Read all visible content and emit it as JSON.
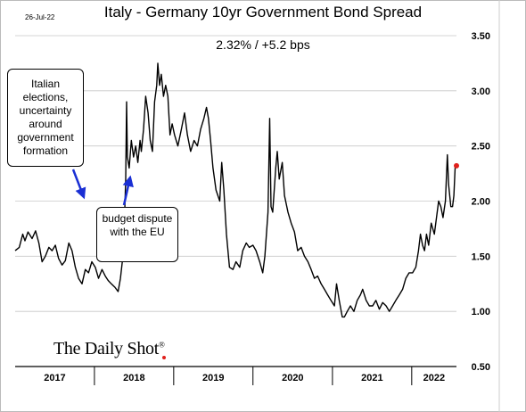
{
  "header": {
    "date": "26-Jul-22",
    "title": "Italy - Germany 10yr Government Bond Spread",
    "subtitle": "2.32%  /  +5.2 bps"
  },
  "annotations": {
    "elections": "Italian elections, uncertainty around government formation",
    "budget": "budget dispute with the EU"
  },
  "branding": {
    "logo": "The Daily Shot",
    "reg": "®",
    "logo_dot_color": "#e0201c"
  },
  "colors": {
    "line": "#000000",
    "last_point": "#e0201c",
    "arrow": "#1a2fd4",
    "grid": "#c8c8c8"
  },
  "chart_data": {
    "type": "line",
    "title": "Italy - Germany 10yr Government Bond Spread",
    "subtitle": "2.32%  /  +5.2 bps",
    "unit": "%",
    "y_axis_position": "right",
    "ylim": [
      0.5,
      3.5
    ],
    "yticks": [
      0.5,
      1.0,
      1.5,
      2.0,
      2.5,
      3.0,
      3.5
    ],
    "ytick_labels": [
      "0.50",
      "1.00",
      "1.50",
      "2.00",
      "2.50",
      "3.00",
      "3.50"
    ],
    "x_range": [
      "2017-01-01",
      "2022-07-26"
    ],
    "year_labels": [
      "2017",
      "2018",
      "2019",
      "2020",
      "2021",
      "2022"
    ],
    "grid": "horizontal",
    "series": [
      {
        "points": [
          [
            "2017-01-01",
            1.55
          ],
          [
            "2017-01-20",
            1.58
          ],
          [
            "2017-02-05",
            1.7
          ],
          [
            "2017-02-15",
            1.64
          ],
          [
            "2017-03-01",
            1.72
          ],
          [
            "2017-03-20",
            1.66
          ],
          [
            "2017-04-05",
            1.73
          ],
          [
            "2017-04-20",
            1.62
          ],
          [
            "2017-05-05",
            1.45
          ],
          [
            "2017-05-20",
            1.5
          ],
          [
            "2017-06-05",
            1.58
          ],
          [
            "2017-06-20",
            1.55
          ],
          [
            "2017-07-05",
            1.6
          ],
          [
            "2017-07-20",
            1.48
          ],
          [
            "2017-08-05",
            1.42
          ],
          [
            "2017-08-20",
            1.46
          ],
          [
            "2017-09-05",
            1.62
          ],
          [
            "2017-09-20",
            1.55
          ],
          [
            "2017-10-05",
            1.4
          ],
          [
            "2017-10-20",
            1.3
          ],
          [
            "2017-11-05",
            1.25
          ],
          [
            "2017-11-20",
            1.38
          ],
          [
            "2017-12-05",
            1.35
          ],
          [
            "2017-12-20",
            1.45
          ],
          [
            "2018-01-05",
            1.4
          ],
          [
            "2018-01-20",
            1.3
          ],
          [
            "2018-02-05",
            1.38
          ],
          [
            "2018-02-20",
            1.32
          ],
          [
            "2018-03-05",
            1.28
          ],
          [
            "2018-03-20",
            1.25
          ],
          [
            "2018-04-05",
            1.22
          ],
          [
            "2018-04-20",
            1.18
          ],
          [
            "2018-05-01",
            1.3
          ],
          [
            "2018-05-15",
            1.55
          ],
          [
            "2018-05-25",
            2.2
          ],
          [
            "2018-05-29",
            2.9
          ],
          [
            "2018-06-02",
            2.4
          ],
          [
            "2018-06-10",
            2.3
          ],
          [
            "2018-06-20",
            2.55
          ],
          [
            "2018-06-30",
            2.4
          ],
          [
            "2018-07-10",
            2.5
          ],
          [
            "2018-07-20",
            2.35
          ],
          [
            "2018-07-30",
            2.55
          ],
          [
            "2018-08-05",
            2.45
          ],
          [
            "2018-08-15",
            2.65
          ],
          [
            "2018-08-25",
            2.95
          ],
          [
            "2018-09-05",
            2.8
          ],
          [
            "2018-09-15",
            2.55
          ],
          [
            "2018-09-25",
            2.45
          ],
          [
            "2018-10-05",
            2.9
          ],
          [
            "2018-10-15",
            3.05
          ],
          [
            "2018-10-20",
            3.25
          ],
          [
            "2018-10-28",
            3.05
          ],
          [
            "2018-11-05",
            3.15
          ],
          [
            "2018-11-15",
            2.95
          ],
          [
            "2018-11-25",
            3.05
          ],
          [
            "2018-12-05",
            2.95
          ],
          [
            "2018-12-15",
            2.6
          ],
          [
            "2018-12-25",
            2.7
          ],
          [
            "2019-01-05",
            2.6
          ],
          [
            "2019-01-20",
            2.5
          ],
          [
            "2019-02-05",
            2.65
          ],
          [
            "2019-02-20",
            2.8
          ],
          [
            "2019-03-05",
            2.6
          ],
          [
            "2019-03-20",
            2.45
          ],
          [
            "2019-04-05",
            2.55
          ],
          [
            "2019-04-20",
            2.5
          ],
          [
            "2019-05-05",
            2.65
          ],
          [
            "2019-05-20",
            2.75
          ],
          [
            "2019-06-01",
            2.85
          ],
          [
            "2019-06-10",
            2.75
          ],
          [
            "2019-06-20",
            2.55
          ],
          [
            "2019-07-01",
            2.3
          ],
          [
            "2019-07-15",
            2.1
          ],
          [
            "2019-08-01",
            2.0
          ],
          [
            "2019-08-10",
            2.35
          ],
          [
            "2019-08-20",
            2.1
          ],
          [
            "2019-09-01",
            1.7
          ],
          [
            "2019-09-15",
            1.4
          ],
          [
            "2019-10-01",
            1.38
          ],
          [
            "2019-10-15",
            1.45
          ],
          [
            "2019-11-01",
            1.4
          ],
          [
            "2019-11-15",
            1.55
          ],
          [
            "2019-12-01",
            1.62
          ],
          [
            "2019-12-15",
            1.58
          ],
          [
            "2020-01-01",
            1.6
          ],
          [
            "2020-01-15",
            1.55
          ],
          [
            "2020-02-01",
            1.45
          ],
          [
            "2020-02-15",
            1.35
          ],
          [
            "2020-02-25",
            1.5
          ],
          [
            "2020-03-10",
            1.9
          ],
          [
            "2020-03-18",
            2.75
          ],
          [
            "2020-03-24",
            1.95
          ],
          [
            "2020-04-01",
            1.9
          ],
          [
            "2020-04-15",
            2.3
          ],
          [
            "2020-04-22",
            2.45
          ],
          [
            "2020-05-01",
            2.2
          ],
          [
            "2020-05-15",
            2.35
          ],
          [
            "2020-05-25",
            2.05
          ],
          [
            "2020-06-10",
            1.9
          ],
          [
            "2020-06-25",
            1.8
          ],
          [
            "2020-07-10",
            1.72
          ],
          [
            "2020-07-25",
            1.55
          ],
          [
            "2020-08-10",
            1.58
          ],
          [
            "2020-08-25",
            1.5
          ],
          [
            "2020-09-10",
            1.45
          ],
          [
            "2020-09-25",
            1.38
          ],
          [
            "2020-10-10",
            1.3
          ],
          [
            "2020-10-25",
            1.32
          ],
          [
            "2020-11-10",
            1.25
          ],
          [
            "2020-11-25",
            1.2
          ],
          [
            "2020-12-10",
            1.15
          ],
          [
            "2020-12-25",
            1.1
          ],
          [
            "2021-01-10",
            1.05
          ],
          [
            "2021-01-20",
            1.25
          ],
          [
            "2021-02-01",
            1.1
          ],
          [
            "2021-02-15",
            0.95
          ],
          [
            "2021-02-25",
            0.95
          ],
          [
            "2021-03-10",
            1.0
          ],
          [
            "2021-03-25",
            1.05
          ],
          [
            "2021-04-10",
            1.0
          ],
          [
            "2021-04-25",
            1.1
          ],
          [
            "2021-05-10",
            1.15
          ],
          [
            "2021-05-20",
            1.2
          ],
          [
            "2021-06-05",
            1.1
          ],
          [
            "2021-06-20",
            1.05
          ],
          [
            "2021-07-05",
            1.05
          ],
          [
            "2021-07-20",
            1.1
          ],
          [
            "2021-08-05",
            1.02
          ],
          [
            "2021-08-20",
            1.08
          ],
          [
            "2021-09-05",
            1.05
          ],
          [
            "2021-09-20",
            1.0
          ],
          [
            "2021-10-05",
            1.05
          ],
          [
            "2021-10-20",
            1.1
          ],
          [
            "2021-11-05",
            1.15
          ],
          [
            "2021-11-20",
            1.2
          ],
          [
            "2021-12-05",
            1.3
          ],
          [
            "2021-12-20",
            1.35
          ],
          [
            "2022-01-05",
            1.35
          ],
          [
            "2022-01-20",
            1.4
          ],
          [
            "2022-02-01",
            1.55
          ],
          [
            "2022-02-10",
            1.7
          ],
          [
            "2022-02-20",
            1.6
          ],
          [
            "2022-03-01",
            1.55
          ],
          [
            "2022-03-10",
            1.7
          ],
          [
            "2022-03-20",
            1.6
          ],
          [
            "2022-04-01",
            1.8
          ],
          [
            "2022-04-15",
            1.7
          ],
          [
            "2022-04-25",
            1.85
          ],
          [
            "2022-05-05",
            2.0
          ],
          [
            "2022-05-15",
            1.95
          ],
          [
            "2022-05-25",
            1.85
          ],
          [
            "2022-06-05",
            2.0
          ],
          [
            "2022-06-14",
            2.42
          ],
          [
            "2022-06-20",
            2.15
          ],
          [
            "2022-06-30",
            1.95
          ],
          [
            "2022-07-08",
            1.95
          ],
          [
            "2022-07-14",
            2.05
          ],
          [
            "2022-07-20",
            2.3
          ],
          [
            "2022-07-26",
            2.32
          ]
        ]
      }
    ],
    "last_value": 2.32
  }
}
